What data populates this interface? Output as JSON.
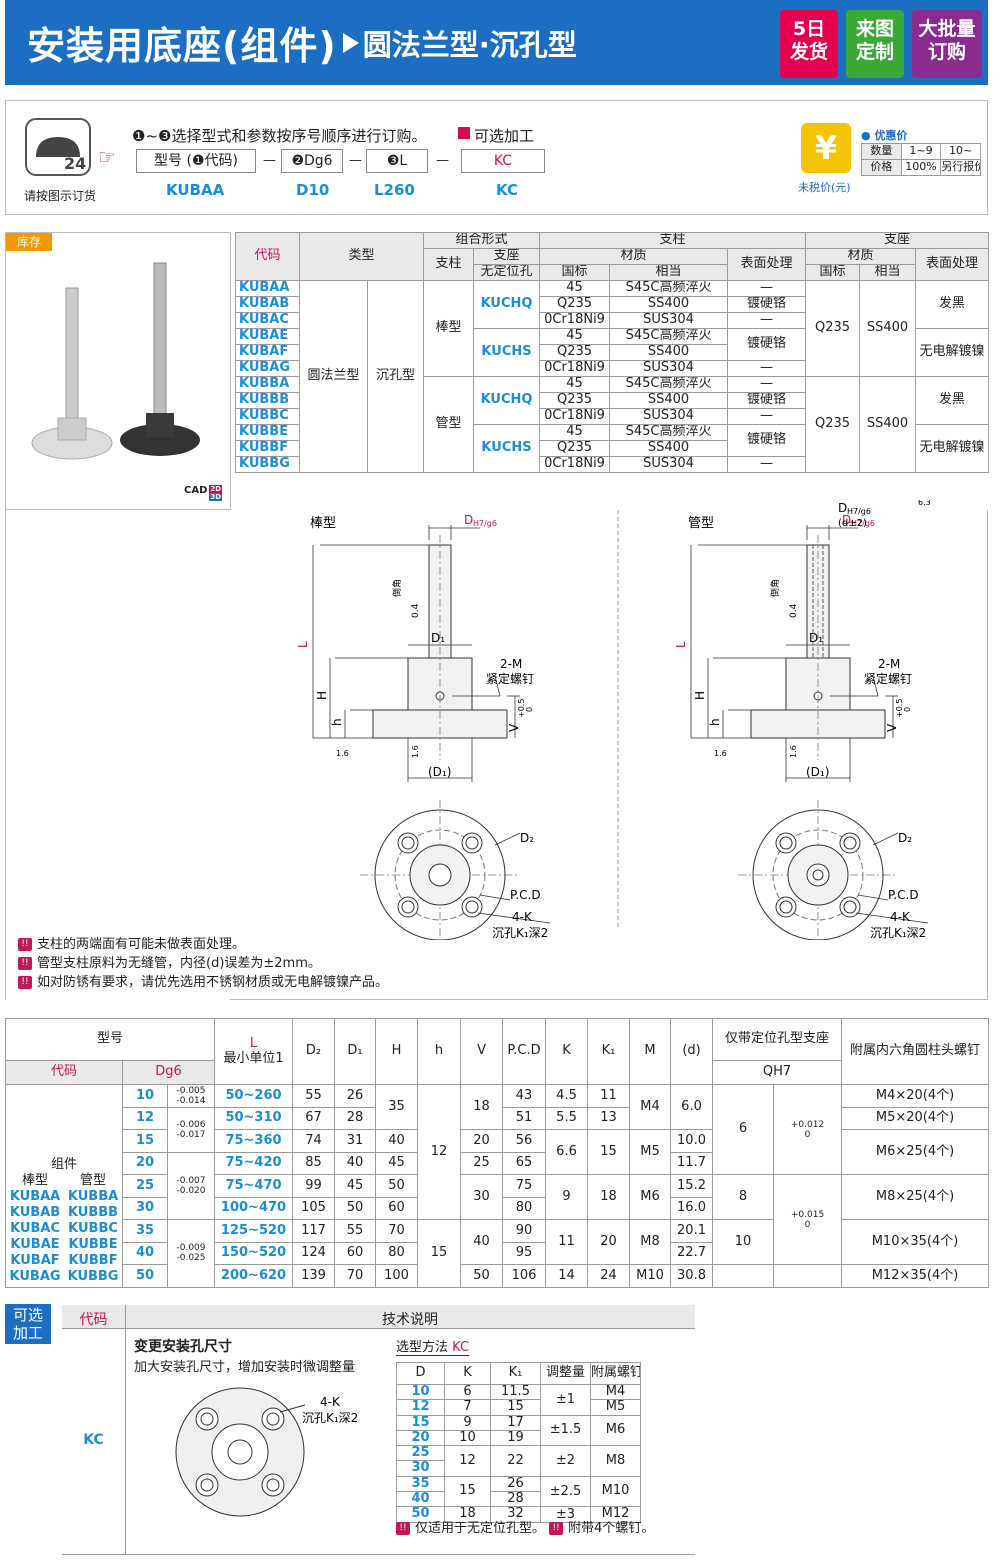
{
  "header": {
    "title": "安装用底座(组件)",
    "subtitle": "圆法兰型·沉孔型",
    "badges": [
      "5日发货",
      "来图定制",
      "大批量订购"
    ]
  },
  "order": {
    "phone_caption": "请按图示订货",
    "instruction": "❶~❸选择型式和参数按序号顺序进行订购。",
    "optional_label": "可选加工",
    "fields": [
      "型号 (❶代码)",
      "❷Dg6",
      "❸L",
      "KC"
    ],
    "example": [
      "KUBAA",
      "D10",
      "L260",
      "KC"
    ]
  },
  "price": {
    "title": "优惠价",
    "rows": [
      [
        "数量",
        "1~9",
        "10~"
      ],
      [
        "价格",
        "100%",
        "另行报价"
      ]
    ],
    "caption": "未税价(元)"
  },
  "stock": {
    "label": "库存",
    "cad": "CAD",
    "cad_2d": "2D",
    "cad_3d": "3D"
  },
  "spec_table": {
    "headers": {
      "code": "代码",
      "type": "类型",
      "combination": "组合形式",
      "pillar": "支柱",
      "base": "支座",
      "no_locating_hole": "无定位孔",
      "material": "材质",
      "gb": "国标",
      "equivalent": "相当",
      "surface": "表面处理"
    },
    "type_flange": "圆法兰型",
    "type_counterbore": "沉孔型",
    "groups": [
      {
        "pillar": "棒型",
        "base_material": "Q235",
        "base_equivalent": "SS400",
        "subgroups": [
          {
            "base": "KUCHQ",
            "base_surface": "发黑",
            "rows": [
              {
                "code": "KUBAA",
                "material": "45",
                "equivalent": "S45C高频淬火",
                "surface": "—"
              },
              {
                "code": "KUBAB",
                "material": "Q235",
                "equivalent": "SS400",
                "surface": "镀硬铬"
              },
              {
                "code": "KUBAC",
                "material": "0Cr18Ni9",
                "equivalent": "SUS304",
                "surface": "—"
              }
            ]
          },
          {
            "base": "KUCHS",
            "base_surface": "无电解镀镍",
            "rows": [
              {
                "code": "KUBAE",
                "material": "45",
                "equivalent": "S45C高频淬火",
                "surface": "镀硬铬"
              },
              {
                "code": "KUBAF",
                "material": "Q235",
                "equivalent": "SS400"
              },
              {
                "code": "KUBAG",
                "material": "0Cr18Ni9",
                "equivalent": "SUS304",
                "surface": "—"
              }
            ]
          }
        ]
      },
      {
        "pillar": "管型",
        "base_material": "Q235",
        "base_equivalent": "SS400",
        "subgroups": [
          {
            "base": "KUCHQ",
            "base_surface": "发黑",
            "rows": [
              {
                "code": "KUBBA",
                "material": "45",
                "equivalent": "S45C高频淬火",
                "surface": "—"
              },
              {
                "code": "KUBBB",
                "material": "Q235",
                "equivalent": "SS400",
                "surface": "镀硬铬"
              },
              {
                "code": "KUBBC",
                "material": "0Cr18Ni9",
                "equivalent": "SUS304",
                "surface": "—"
              }
            ]
          },
          {
            "base": "KUCHS",
            "base_surface": "无电解镀镍",
            "rows": [
              {
                "code": "KUBBE",
                "material": "45",
                "equivalent": "S45C高频淬火",
                "surface": "镀硬铬"
              },
              {
                "code": "KUBBF",
                "material": "Q235",
                "equivalent": "SS400"
              },
              {
                "code": "KUBBG",
                "material": "0Cr18Ni9",
                "equivalent": "SUS304",
                "surface": "—"
              }
            ]
          }
        ]
      }
    ]
  },
  "diagrams": {
    "rod": "棒型",
    "tube": "管型",
    "d": "D",
    "d_fit": "H7/g6",
    "d_tube": "(d±2)",
    "roughness": "6.3",
    "chamfer": "0.4",
    "chamfer_text": "倒角",
    "d1": "D₁",
    "d1_ref": "(D₁)",
    "m": "2-M",
    "set_screw": "紧定螺钉",
    "l": "L",
    "h_cap": "H",
    "h": "h",
    "v": "V",
    "v_upper": "+0.5",
    "v_lower": "0",
    "rough_small": "1.6",
    "d2": "D₂",
    "pcd": "P.C.D",
    "k": "4-K",
    "counterbore": "沉孔K₁深2"
  },
  "notes": [
    "支柱的两端面有可能未做表面处理。",
    "管型支柱原料为无缝管，内径(d)误差为±2mm。",
    "如对防锈有要求，请优先选用不锈钢材质或无电解镀镍产品。"
  ],
  "dim_table": {
    "headers": {
      "model": "型号",
      "code": "代码",
      "dg6": "Dg6",
      "l": "L",
      "l_unit": "最小单位1",
      "d2": "D₂",
      "d1": "D₁",
      "h_cap": "H",
      "h": "h",
      "v": "V",
      "pcd": "P.C.D",
      "k": "K",
      "k1": "K₁",
      "m": "M",
      "d": "(d)",
      "positioning": "仅带定位孔型支座",
      "q": "QH7",
      "screw": "附属内六角圆柱头螺钉"
    },
    "assembly": "组件",
    "rod": "棒型",
    "tube": "管型",
    "code_pairs": [
      [
        "KUBAA",
        "KUBBA"
      ],
      [
        "KUBAB",
        "KUBBB"
      ],
      [
        "KUBAC",
        "KUBBC"
      ],
      [
        "KUBAE",
        "KUBBE"
      ],
      [
        "KUBAF",
        "KUBBF"
      ],
      [
        "KUBAG",
        "KUBBG"
      ]
    ],
    "columns": {
      "d": [
        10,
        12,
        15,
        20,
        25,
        30,
        35,
        40,
        50
      ],
      "dg6_tol": [
        {
          "upper": "-0.005",
          "lower": "-0.014"
        },
        {
          "upper": "-0.006",
          "lower": "-0.017"
        },
        {
          "upper": "-0.007",
          "lower": "-0.020"
        },
        {
          "upper": "-0.009",
          "lower": "-0.025"
        }
      ],
      "l": [
        "50~260",
        "50~310",
        "75~360",
        "75~420",
        "75~470",
        "100~470",
        "125~520",
        "150~520",
        "200~620"
      ],
      "d2": [
        55,
        67,
        74,
        85,
        99,
        105,
        117,
        124,
        139
      ],
      "d1": [
        26,
        28,
        31,
        40,
        45,
        50,
        55,
        60,
        70
      ],
      "h_cap": [
        35,
        40,
        45,
        50,
        60,
        70,
        80,
        100
      ],
      "h": [
        12,
        15
      ],
      "v": [
        18,
        20,
        25,
        30,
        40,
        50
      ],
      "pcd": [
        43,
        51,
        56,
        65,
        75,
        80,
        90,
        95,
        106
      ],
      "k": [
        4.5,
        5.5,
        6.6,
        9,
        11,
        14
      ],
      "k1": [
        11,
        13,
        15,
        18,
        20,
        24
      ],
      "m": [
        "M4",
        "M5",
        "M6",
        "M8",
        "M10"
      ],
      "d_inner": [
        "6.0",
        "10.0",
        "11.7",
        "15.2",
        "16.0",
        "20.1",
        "22.7",
        "30.8"
      ],
      "q": [
        6,
        8,
        10
      ],
      "q_tol": [
        {
          "upper": "+0.012",
          "lower": "0"
        },
        {
          "upper": "+0.015",
          "lower": "0"
        }
      ],
      "screw": [
        "M4×20(4个)",
        "M5×20(4个)",
        "M6×25(4个)",
        "M8×25(4个)",
        "M10×35(4个)",
        "M12×35(4个)"
      ]
    }
  },
  "option": {
    "label": "可选加工",
    "code_header": "代码",
    "desc_header": "技术说明",
    "code": "KC",
    "title": "变更安装孔尺寸",
    "description": "加大安装孔尺寸，增加安装时微调整量",
    "k": "4-K",
    "counterbore": "沉孔K₁深2",
    "method": "选型方法",
    "method_code": "KC",
    "table": {
      "headers": [
        "D",
        "K",
        "K₁",
        "调整量",
        "附属螺钉"
      ],
      "d": [
        10,
        12,
        15,
        20,
        25,
        30,
        35,
        40,
        50
      ],
      "k": [
        6,
        7,
        9,
        10,
        12,
        15,
        18
      ],
      "k1": [
        11.5,
        15,
        17,
        19,
        22,
        26,
        28,
        32
      ],
      "adjust": [
        "±1",
        "±1.5",
        "±2",
        "±2.5",
        "±3"
      ],
      "screw": [
        "M4",
        "M5",
        "M6",
        "M8",
        "M10",
        "M12"
      ]
    },
    "notes": [
      "仅适用于无定位孔型。",
      "附带4个螺钉。"
    ]
  }
}
